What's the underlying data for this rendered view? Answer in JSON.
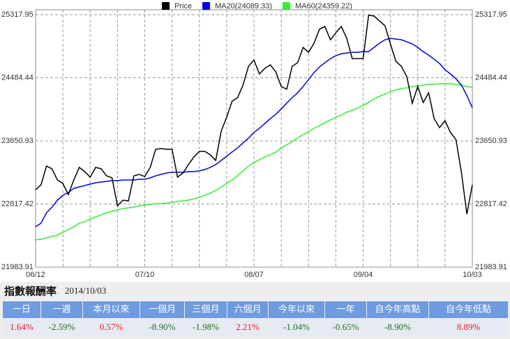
{
  "chart_data": {
    "type": "line",
    "categories": [
      "06/12",
      null,
      null,
      null,
      null,
      null,
      null,
      null,
      null,
      null,
      null,
      null,
      null,
      null,
      null,
      null,
      null,
      null,
      null,
      null,
      "07/10",
      null,
      null,
      null,
      null,
      null,
      null,
      null,
      null,
      null,
      null,
      null,
      null,
      null,
      null,
      null,
      null,
      null,
      null,
      null,
      "08/07",
      null,
      null,
      null,
      null,
      null,
      null,
      null,
      null,
      null,
      null,
      null,
      null,
      null,
      null,
      null,
      null,
      null,
      null,
      null,
      "09/04",
      null,
      null,
      null,
      null,
      null,
      null,
      null,
      null,
      null,
      null,
      null,
      null,
      null,
      null,
      null,
      null,
      null,
      null,
      null,
      "10/03"
    ],
    "series": [
      {
        "name": "Price",
        "color": "#000000",
        "values": [
          23006,
          23071,
          23319,
          23283,
          23135,
          23089,
          22942,
          23135,
          23301,
          23246,
          23172,
          23301,
          23283,
          23190,
          23163,
          22794,
          22868,
          22859,
          23190,
          23209,
          23181,
          23301,
          23540,
          23550,
          23540,
          23540,
          23172,
          23227,
          23338,
          23439,
          23513,
          23513,
          23467,
          23393,
          23780,
          23964,
          24176,
          24222,
          24388,
          24636,
          24719,
          24535,
          24609,
          24655,
          24563,
          24369,
          24333,
          24636,
          24683,
          24885,
          24821,
          24940,
          25125,
          25161,
          24986,
          25079,
          25161,
          25005,
          24738,
          24738,
          24738,
          25310,
          25300,
          25235,
          25171,
          24931,
          24701,
          24636,
          24498,
          24148,
          24369,
          24158,
          24286,
          23946,
          23826,
          23918,
          23762,
          23669,
          23237,
          22684,
          23071
        ]
      },
      {
        "name": "MA20(24089.33)",
        "color": "#0000dd",
        "values": [
          22518,
          22564,
          22702,
          22776,
          22868,
          22933,
          22969,
          23025,
          23043,
          23062,
          23080,
          23098,
          23108,
          23117,
          23126,
          23126,
          23135,
          23135,
          23135,
          23144,
          23144,
          23163,
          23190,
          23209,
          23227,
          23237,
          23237,
          23237,
          23246,
          23246,
          23255,
          23273,
          23301,
          23338,
          23393,
          23448,
          23504,
          23559,
          23623,
          23688,
          23762,
          23817,
          23881,
          23946,
          24001,
          24075,
          24148,
          24222,
          24286,
          24369,
          24461,
          24554,
          24627,
          24683,
          24738,
          24775,
          24802,
          24811,
          24821,
          24821,
          24830,
          24830,
          24885,
          24940,
          24986,
          25005,
          24996,
          24986,
          24959,
          24931,
          24885,
          24830,
          24784,
          24729,
          24673,
          24590,
          24535,
          24471,
          24388,
          24250,
          24089.33
        ]
      },
      {
        "name": "MA60(24359.22)",
        "color": "#33ee33",
        "values": [
          22343,
          22352,
          22371,
          22389,
          22408,
          22444,
          22481,
          22518,
          22564,
          22583,
          22619,
          22647,
          22675,
          22702,
          22721,
          22739,
          22758,
          22767,
          22776,
          22794,
          22804,
          22813,
          22822,
          22822,
          22831,
          22840,
          22850,
          22859,
          22868,
          22887,
          22905,
          22933,
          22960,
          22997,
          23043,
          23089,
          23135,
          23190,
          23255,
          23319,
          23365,
          23402,
          23439,
          23467,
          23504,
          23559,
          23596,
          23642,
          23688,
          23734,
          23771,
          23817,
          23854,
          23890,
          23927,
          23964,
          23992,
          24029,
          24056,
          24084,
          24121,
          24158,
          24204,
          24240,
          24268,
          24305,
          24323,
          24342,
          24351,
          24369,
          24379,
          24388,
          24397,
          24397,
          24406,
          24406,
          24406,
          24397,
          24388,
          24369,
          24359.22
        ]
      }
    ],
    "ylim": [
      21983.91,
      25317.95
    ],
    "yticks": [
      21983.91,
      22817.42,
      23650.93,
      24484.44,
      25317.95
    ],
    "grid": true,
    "legend": "top"
  },
  "table": {
    "title": "指數報酬率",
    "date": "2014/10/03",
    "headers": [
      "一日",
      "一週",
      "本月以來",
      "一個月",
      "三個月",
      "六個月",
      "今年以來",
      "一年",
      "自今年高點",
      "自今年低點"
    ],
    "rows": [
      [
        "1.64%",
        "-2.59%",
        "0.57%",
        "-8.90%",
        "-1.98%",
        "2.21%",
        "-1.04%",
        "-0.65%",
        "-8.90%",
        "8.89%"
      ]
    ]
  }
}
